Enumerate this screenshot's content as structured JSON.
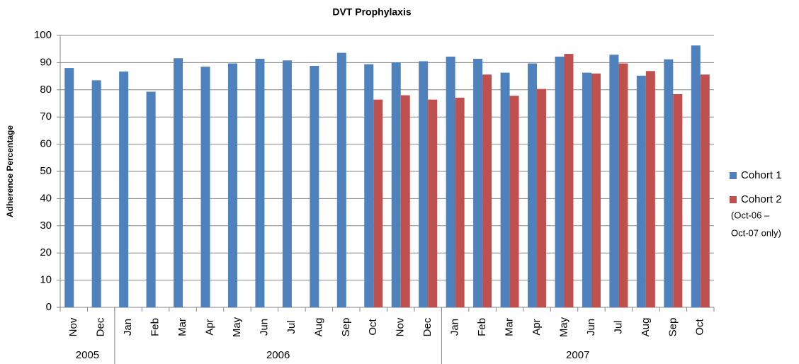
{
  "chart_data": {
    "type": "bar",
    "title": "DVT Prophylaxis",
    "y_label": "Adherence Percentage",
    "categories": [
      "Nov",
      "Dec",
      "Jan",
      "Feb",
      "Mar",
      "Apr",
      "May",
      "Jun",
      "Jul",
      "Aug",
      "Sep",
      "Oct",
      "Nov",
      "Dec",
      "Jan",
      "Feb",
      "Mar",
      "Apr",
      "May",
      "Jun",
      "Jul",
      "Aug",
      "Sep",
      "Oct"
    ],
    "year_groups": [
      {
        "label": "2005",
        "span": 2
      },
      {
        "label": "2006",
        "span": 12
      },
      {
        "label": "2007",
        "span": 10
      }
    ],
    "series": [
      {
        "name": "Cohort 1",
        "color": "#4f81bd",
        "values": [
          88,
          83.5,
          86.7,
          79.3,
          91.6,
          88.5,
          89.7,
          91.4,
          90.8,
          88.8,
          93.6,
          89.4,
          90.1,
          90.5,
          92.2,
          91.4,
          86.3,
          89.7,
          92.2,
          86.3,
          92.9,
          85.2,
          91.2,
          96.3
        ]
      },
      {
        "name": "Cohort 2",
        "color": "#c0504d",
        "values": [
          null,
          null,
          null,
          null,
          null,
          null,
          null,
          null,
          null,
          null,
          null,
          76.4,
          78,
          76.4,
          77.1,
          85.6,
          77.8,
          80.3,
          93.2,
          86,
          89.7,
          86.9,
          78.4,
          85.6
        ]
      }
    ],
    "legend_note": [
      "(Oct-06 –",
      "Oct-07 only)"
    ],
    "ylim": [
      0,
      100
    ],
    "yticks": [
      0,
      10,
      20,
      30,
      40,
      50,
      60,
      70,
      80,
      90,
      100
    ],
    "grid": true,
    "legend": "right"
  }
}
